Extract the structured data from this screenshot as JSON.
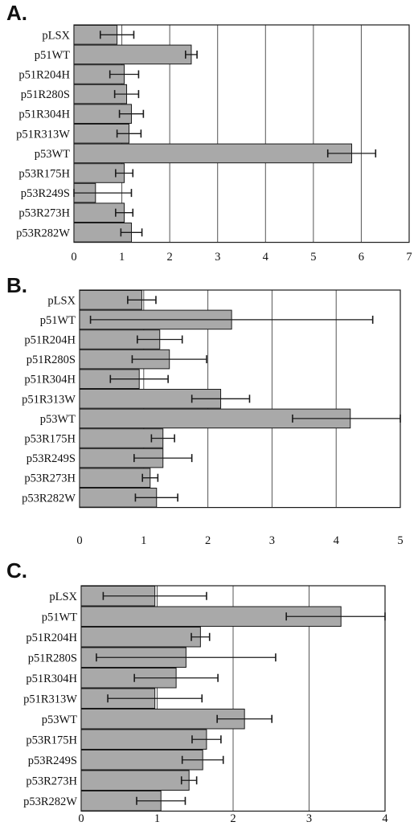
{
  "colors": {
    "bar": "#a9a9a9",
    "stroke": "#1a1a1a",
    "background": "#ffffff"
  },
  "chart_data": [
    {
      "type": "bar",
      "orientation": "horizontal",
      "panel_label": "A.",
      "categories": [
        "pLSX",
        "p51WT",
        "p51R204H",
        "p51R280S",
        "p51R304H",
        "p51R313W",
        "p53WT",
        "p53R175H",
        "p53R249S",
        "p53R273H",
        "p53R282W"
      ],
      "values": [
        0.9,
        2.45,
        1.05,
        1.1,
        1.2,
        1.15,
        5.8,
        1.05,
        0.45,
        1.05,
        1.2
      ],
      "errors": [
        0.35,
        0.12,
        0.3,
        0.25,
        0.25,
        0.25,
        0.5,
        0.18,
        0.75,
        0.18,
        0.22
      ],
      "xlim": [
        0,
        7
      ],
      "xticks": [
        0,
        1,
        2,
        3,
        4,
        5,
        6,
        7
      ],
      "grid": true
    },
    {
      "type": "bar",
      "orientation": "horizontal",
      "panel_label": "B.",
      "categories": [
        "pLSX",
        "p51WT",
        "p51R204H",
        "p51R280S",
        "p51R304H",
        "p51R313W",
        "p53WT",
        "p53R175H",
        "p53R249S",
        "p53R273H",
        "p53R282W"
      ],
      "values": [
        0.97,
        2.37,
        1.25,
        1.4,
        0.93,
        2.2,
        4.22,
        1.3,
        1.3,
        1.1,
        1.2
      ],
      "errors": [
        0.22,
        2.2,
        0.35,
        0.58,
        0.45,
        0.45,
        0.9,
        0.18,
        0.45,
        0.12,
        0.33
      ],
      "xlim": [
        0,
        5
      ],
      "xticks": [
        0,
        1,
        2,
        3,
        4,
        5
      ],
      "grid": true
    },
    {
      "type": "bar",
      "orientation": "horizontal",
      "panel_label": "C.",
      "categories": [
        "pLSX",
        "p51WT",
        "p51R204H",
        "p51R280S",
        "p51R304H",
        "p51R313W",
        "p53WT",
        "p53R175H",
        "p53R249S",
        "p53R273H",
        "p53R282W"
      ],
      "values": [
        0.97,
        3.42,
        1.57,
        1.38,
        1.25,
        0.97,
        2.15,
        1.65,
        1.6,
        1.42,
        1.05
      ],
      "errors": [
        0.68,
        0.72,
        0.12,
        1.18,
        0.55,
        0.62,
        0.36,
        0.19,
        0.27,
        0.1,
        0.32
      ],
      "xlim": [
        0,
        4
      ],
      "xticks": [
        0,
        1,
        2,
        3,
        4
      ],
      "grid": true
    }
  ]
}
